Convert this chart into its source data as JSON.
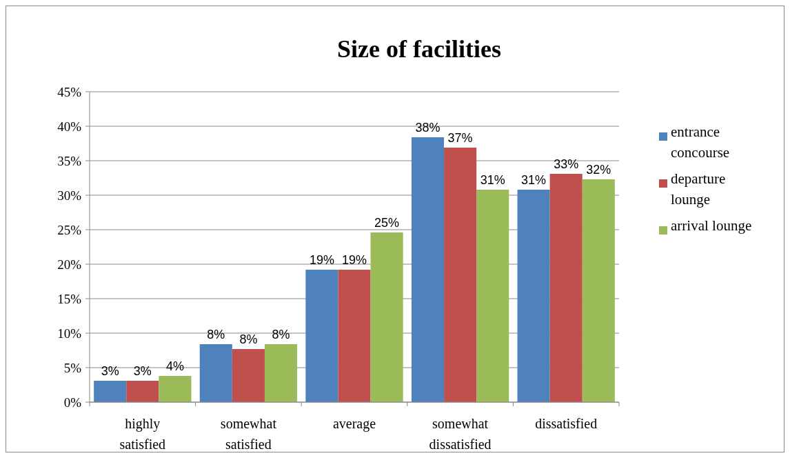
{
  "chart_data": {
    "type": "bar",
    "title": "Size of facilities",
    "categories": [
      "highly satisfied",
      "somewhat satisfied",
      "average",
      "somewhat dissatisfied",
      "dissatisfied"
    ],
    "series": [
      {
        "name": "entrance concourse",
        "color": "#4f81bd",
        "values": [
          3.1,
          8.4,
          19.2,
          38.4,
          30.8
        ],
        "value_labels": [
          "3%",
          "8%",
          "19%",
          "38%",
          "31%"
        ]
      },
      {
        "name": "departure lounge",
        "color": "#c0504d",
        "values": [
          3.1,
          7.7,
          19.2,
          36.9,
          33.1
        ],
        "value_labels": [
          "3%",
          "8%",
          "19%",
          "37%",
          "33%"
        ]
      },
      {
        "name": "arrival lounge",
        "color": "#9bbb59",
        "values": [
          3.8,
          8.4,
          24.6,
          30.8,
          32.3
        ],
        "value_labels": [
          "4%",
          "8%",
          "25%",
          "31%",
          "32%"
        ]
      }
    ],
    "ylim": [
      0,
      45
    ],
    "yticks": [
      {
        "value": 0,
        "label": "0%"
      },
      {
        "value": 5,
        "label": "5%"
      },
      {
        "value": 10,
        "label": "10%"
      },
      {
        "value": 15,
        "label": "15%"
      },
      {
        "value": 20,
        "label": "20%"
      },
      {
        "value": 25,
        "label": "25%"
      },
      {
        "value": 30,
        "label": "30%"
      },
      {
        "value": 35,
        "label": "35%"
      },
      {
        "value": 40,
        "label": "40%"
      },
      {
        "value": 45,
        "label": "45%"
      }
    ],
    "grid": "y",
    "legend": "right"
  }
}
